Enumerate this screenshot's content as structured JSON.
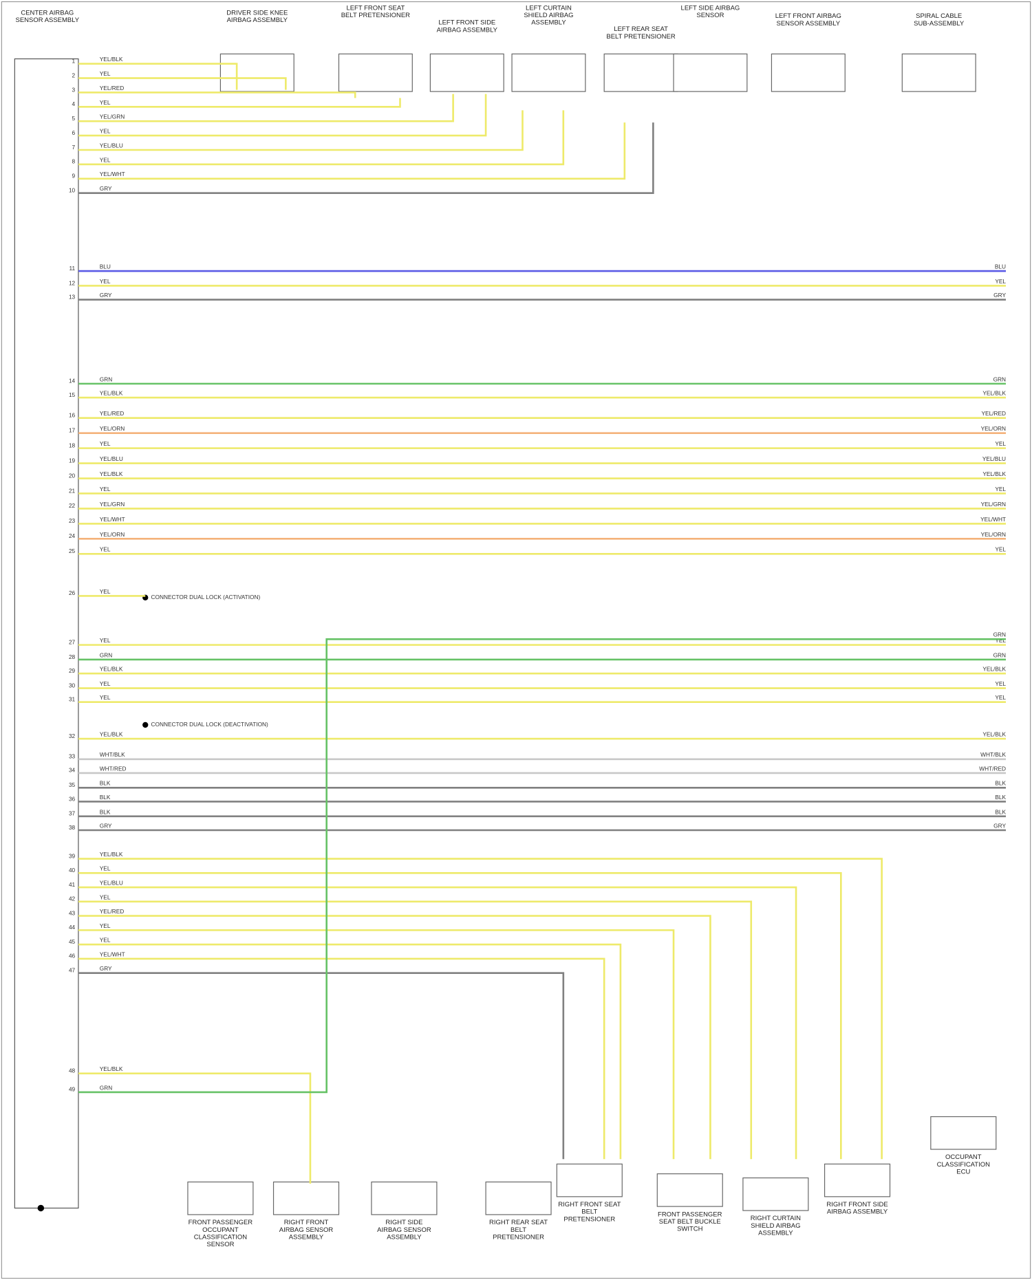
{
  "module": {
    "label": "CENTER AIRBAG SENSOR ASSEMBLY"
  },
  "top_components": [
    "DRIVER SIDE KNEE AIRBAG ASSEMBLY",
    "LEFT FRONT SEAT BELT PRETENSIONER",
    "LEFT FRONT SIDE AIRBAG ASSEMBLY",
    "LEFT CURTAIN SHIELD AIRBAG ASSEMBLY",
    "LEFT REAR SEAT BELT PRETENSIONER",
    "LEFT SIDE AIRBAG SENSOR",
    "LEFT FRONT AIRBAG SENSOR ASSEMBLY",
    "SPIRAL CABLE SUB-ASSEMBLY"
  ],
  "bottom_components": [
    "FRONT PASSENGER OCCUPANT CLASSIFICATION SENSOR",
    "RIGHT FRONT AIRBAG SENSOR ASSEMBLY",
    "RIGHT SIDE AIRBAG SENSOR ASSEMBLY",
    "RIGHT REAR SEAT BELT PRETENSIONER",
    "RIGHT FRONT SEAT BELT PRETENSIONER",
    "FRONT PASSENGER SEAT BELT BUCKLE SWITCH",
    "RIGHT CURTAIN SHIELD AIRBAG ASSEMBLY",
    "RIGHT FRONT SIDE AIRBAG ASSEMBLY",
    "OCCUPANT CLASSIFICATION ECU"
  ],
  "notes": [
    "CONNECTOR DUAL LOCK (ACTIVATION)",
    "CONNECTOR DUAL LOCK (DEACTIVATION)"
  ],
  "wires": [
    {
      "pin": "1",
      "code": "YEL/BLK",
      "color": "#eeea6a"
    },
    {
      "pin": "2",
      "code": "YEL",
      "color": "#eeea6a"
    },
    {
      "pin": "3",
      "code": "YEL/RED",
      "color": "#eeea6a"
    },
    {
      "pin": "4",
      "code": "YEL",
      "color": "#eeea6a"
    },
    {
      "pin": "5",
      "code": "YEL/GRN",
      "color": "#eeea6a"
    },
    {
      "pin": "6",
      "code": "YEL",
      "color": "#eeea6a"
    },
    {
      "pin": "7",
      "code": "YEL/BLU",
      "color": "#eeea6a"
    },
    {
      "pin": "8",
      "code": "YEL",
      "color": "#eeea6a"
    },
    {
      "pin": "9",
      "code": "YEL/WHT",
      "color": "#eeea6a"
    },
    {
      "pin": "10",
      "code": "GRY",
      "color": "#808080"
    },
    {
      "pin": "11",
      "code": "BLU",
      "color": "#5a5ae6"
    },
    {
      "pin": "12",
      "code": "YEL",
      "color": "#eeea6a"
    },
    {
      "pin": "13",
      "code": "GRY",
      "color": "#808080"
    },
    {
      "pin": "14",
      "code": "GRN",
      "color": "#66c266"
    },
    {
      "pin": "15",
      "code": "YEL/BLK",
      "color": "#eeea6a"
    },
    {
      "pin": "16",
      "code": "YEL/RED",
      "color": "#eeea6a"
    },
    {
      "pin": "17",
      "code": "YEL/ORN",
      "color": "#f4b27a"
    },
    {
      "pin": "18",
      "code": "YEL",
      "color": "#eeea6a"
    },
    {
      "pin": "19",
      "code": "YEL/BLU",
      "color": "#eeea6a"
    },
    {
      "pin": "20",
      "code": "YEL/BLK",
      "color": "#eeea6a"
    },
    {
      "pin": "21",
      "code": "YEL",
      "color": "#eeea6a"
    },
    {
      "pin": "22",
      "code": "YEL/GRN",
      "color": "#eeea6a"
    },
    {
      "pin": "23",
      "code": "YEL/WHT",
      "color": "#eeea6a"
    },
    {
      "pin": "24",
      "code": "YEL/ORN",
      "color": "#f4b27a"
    },
    {
      "pin": "25",
      "code": "YEL",
      "color": "#eeea6a"
    },
    {
      "pin": "26",
      "code": "YEL",
      "color": "#eeea6a"
    },
    {
      "pin": "27",
      "code": "YEL",
      "color": "#eeea6a"
    },
    {
      "pin": "28",
      "code": "GRN",
      "color": "#66c266"
    },
    {
      "pin": "29",
      "code": "YEL/BLK",
      "color": "#eeea6a"
    },
    {
      "pin": "30",
      "code": "YEL",
      "color": "#eeea6a"
    },
    {
      "pin": "31",
      "code": "YEL",
      "color": "#eeea6a"
    },
    {
      "pin": "32",
      "code": "YEL/BLK",
      "color": "#eeea6a"
    },
    {
      "pin": "33",
      "code": "WHT/BLK",
      "color": "#c8c8c8"
    },
    {
      "pin": "34",
      "code": "WHT/RED",
      "color": "#c8c8c8"
    },
    {
      "pin": "35",
      "code": "BLK",
      "color": "#808080"
    },
    {
      "pin": "36",
      "code": "BLK",
      "color": "#808080"
    },
    {
      "pin": "37",
      "code": "BLK",
      "color": "#808080"
    },
    {
      "pin": "38",
      "code": "GRY",
      "color": "#808080"
    },
    {
      "pin": "39",
      "code": "YEL/BLK",
      "color": "#eeea6a"
    },
    {
      "pin": "40",
      "code": "YEL",
      "color": "#eeea6a"
    },
    {
      "pin": "41",
      "code": "YEL/BLU",
      "color": "#eeea6a"
    },
    {
      "pin": "42",
      "code": "YEL",
      "color": "#eeea6a"
    },
    {
      "pin": "43",
      "code": "YEL/RED",
      "color": "#eeea6a"
    },
    {
      "pin": "44",
      "code": "YEL",
      "color": "#eeea6a"
    },
    {
      "pin": "45",
      "code": "YEL",
      "color": "#eeea6a"
    },
    {
      "pin": "46",
      "code": "YEL/WHT",
      "color": "#eeea6a"
    },
    {
      "pin": "47",
      "code": "GRY",
      "color": "#808080"
    },
    {
      "pin": "48",
      "code": "YEL/BLK",
      "color": "#eeea6a"
    },
    {
      "pin": "49",
      "code": "GRN",
      "color": "#66c266"
    }
  ]
}
